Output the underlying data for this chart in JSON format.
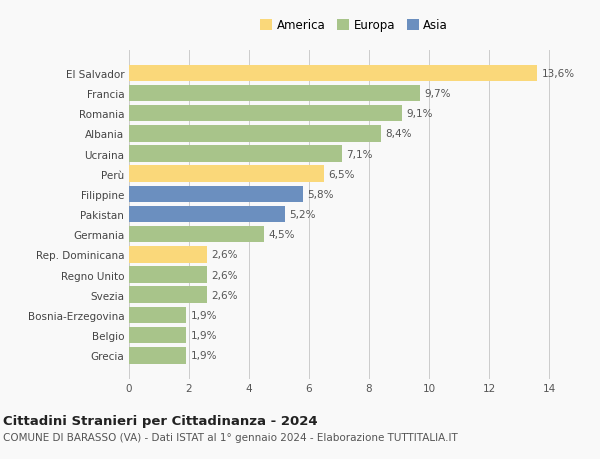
{
  "categories": [
    "El Salvador",
    "Francia",
    "Romania",
    "Albania",
    "Ucraina",
    "Perù",
    "Filippine",
    "Pakistan",
    "Germania",
    "Rep. Dominicana",
    "Regno Unito",
    "Svezia",
    "Bosnia-Erzegovina",
    "Belgio",
    "Grecia"
  ],
  "values": [
    13.6,
    9.7,
    9.1,
    8.4,
    7.1,
    6.5,
    5.8,
    5.2,
    4.5,
    2.6,
    2.6,
    2.6,
    1.9,
    1.9,
    1.9
  ],
  "labels": [
    "13,6%",
    "9,7%",
    "9,1%",
    "8,4%",
    "7,1%",
    "6,5%",
    "5,8%",
    "5,2%",
    "4,5%",
    "2,6%",
    "2,6%",
    "2,6%",
    "1,9%",
    "1,9%",
    "1,9%"
  ],
  "colors": [
    "#FAD87A",
    "#A8C48A",
    "#A8C48A",
    "#A8C48A",
    "#A8C48A",
    "#FAD87A",
    "#6B8FBF",
    "#6B8FBF",
    "#A8C48A",
    "#FAD87A",
    "#A8C48A",
    "#A8C48A",
    "#A8C48A",
    "#A8C48A",
    "#A8C48A"
  ],
  "legend": [
    {
      "label": "America",
      "color": "#FAD87A"
    },
    {
      "label": "Europa",
      "color": "#A8C48A"
    },
    {
      "label": "Asia",
      "color": "#6B8FBF"
    }
  ],
  "xlim": [
    0,
    15
  ],
  "xticks": [
    0,
    2,
    4,
    6,
    8,
    10,
    12,
    14
  ],
  "title1": "Cittadini Stranieri per Cittadinanza - 2024",
  "title2": "COMUNE DI BARASSO (VA) - Dati ISTAT al 1° gennaio 2024 - Elaborazione TUTTITALIA.IT",
  "background_color": "#f9f9f9",
  "bar_height": 0.82,
  "label_fontsize": 7.5,
  "tick_fontsize": 7.5,
  "title1_fontsize": 9.5,
  "title2_fontsize": 7.5
}
